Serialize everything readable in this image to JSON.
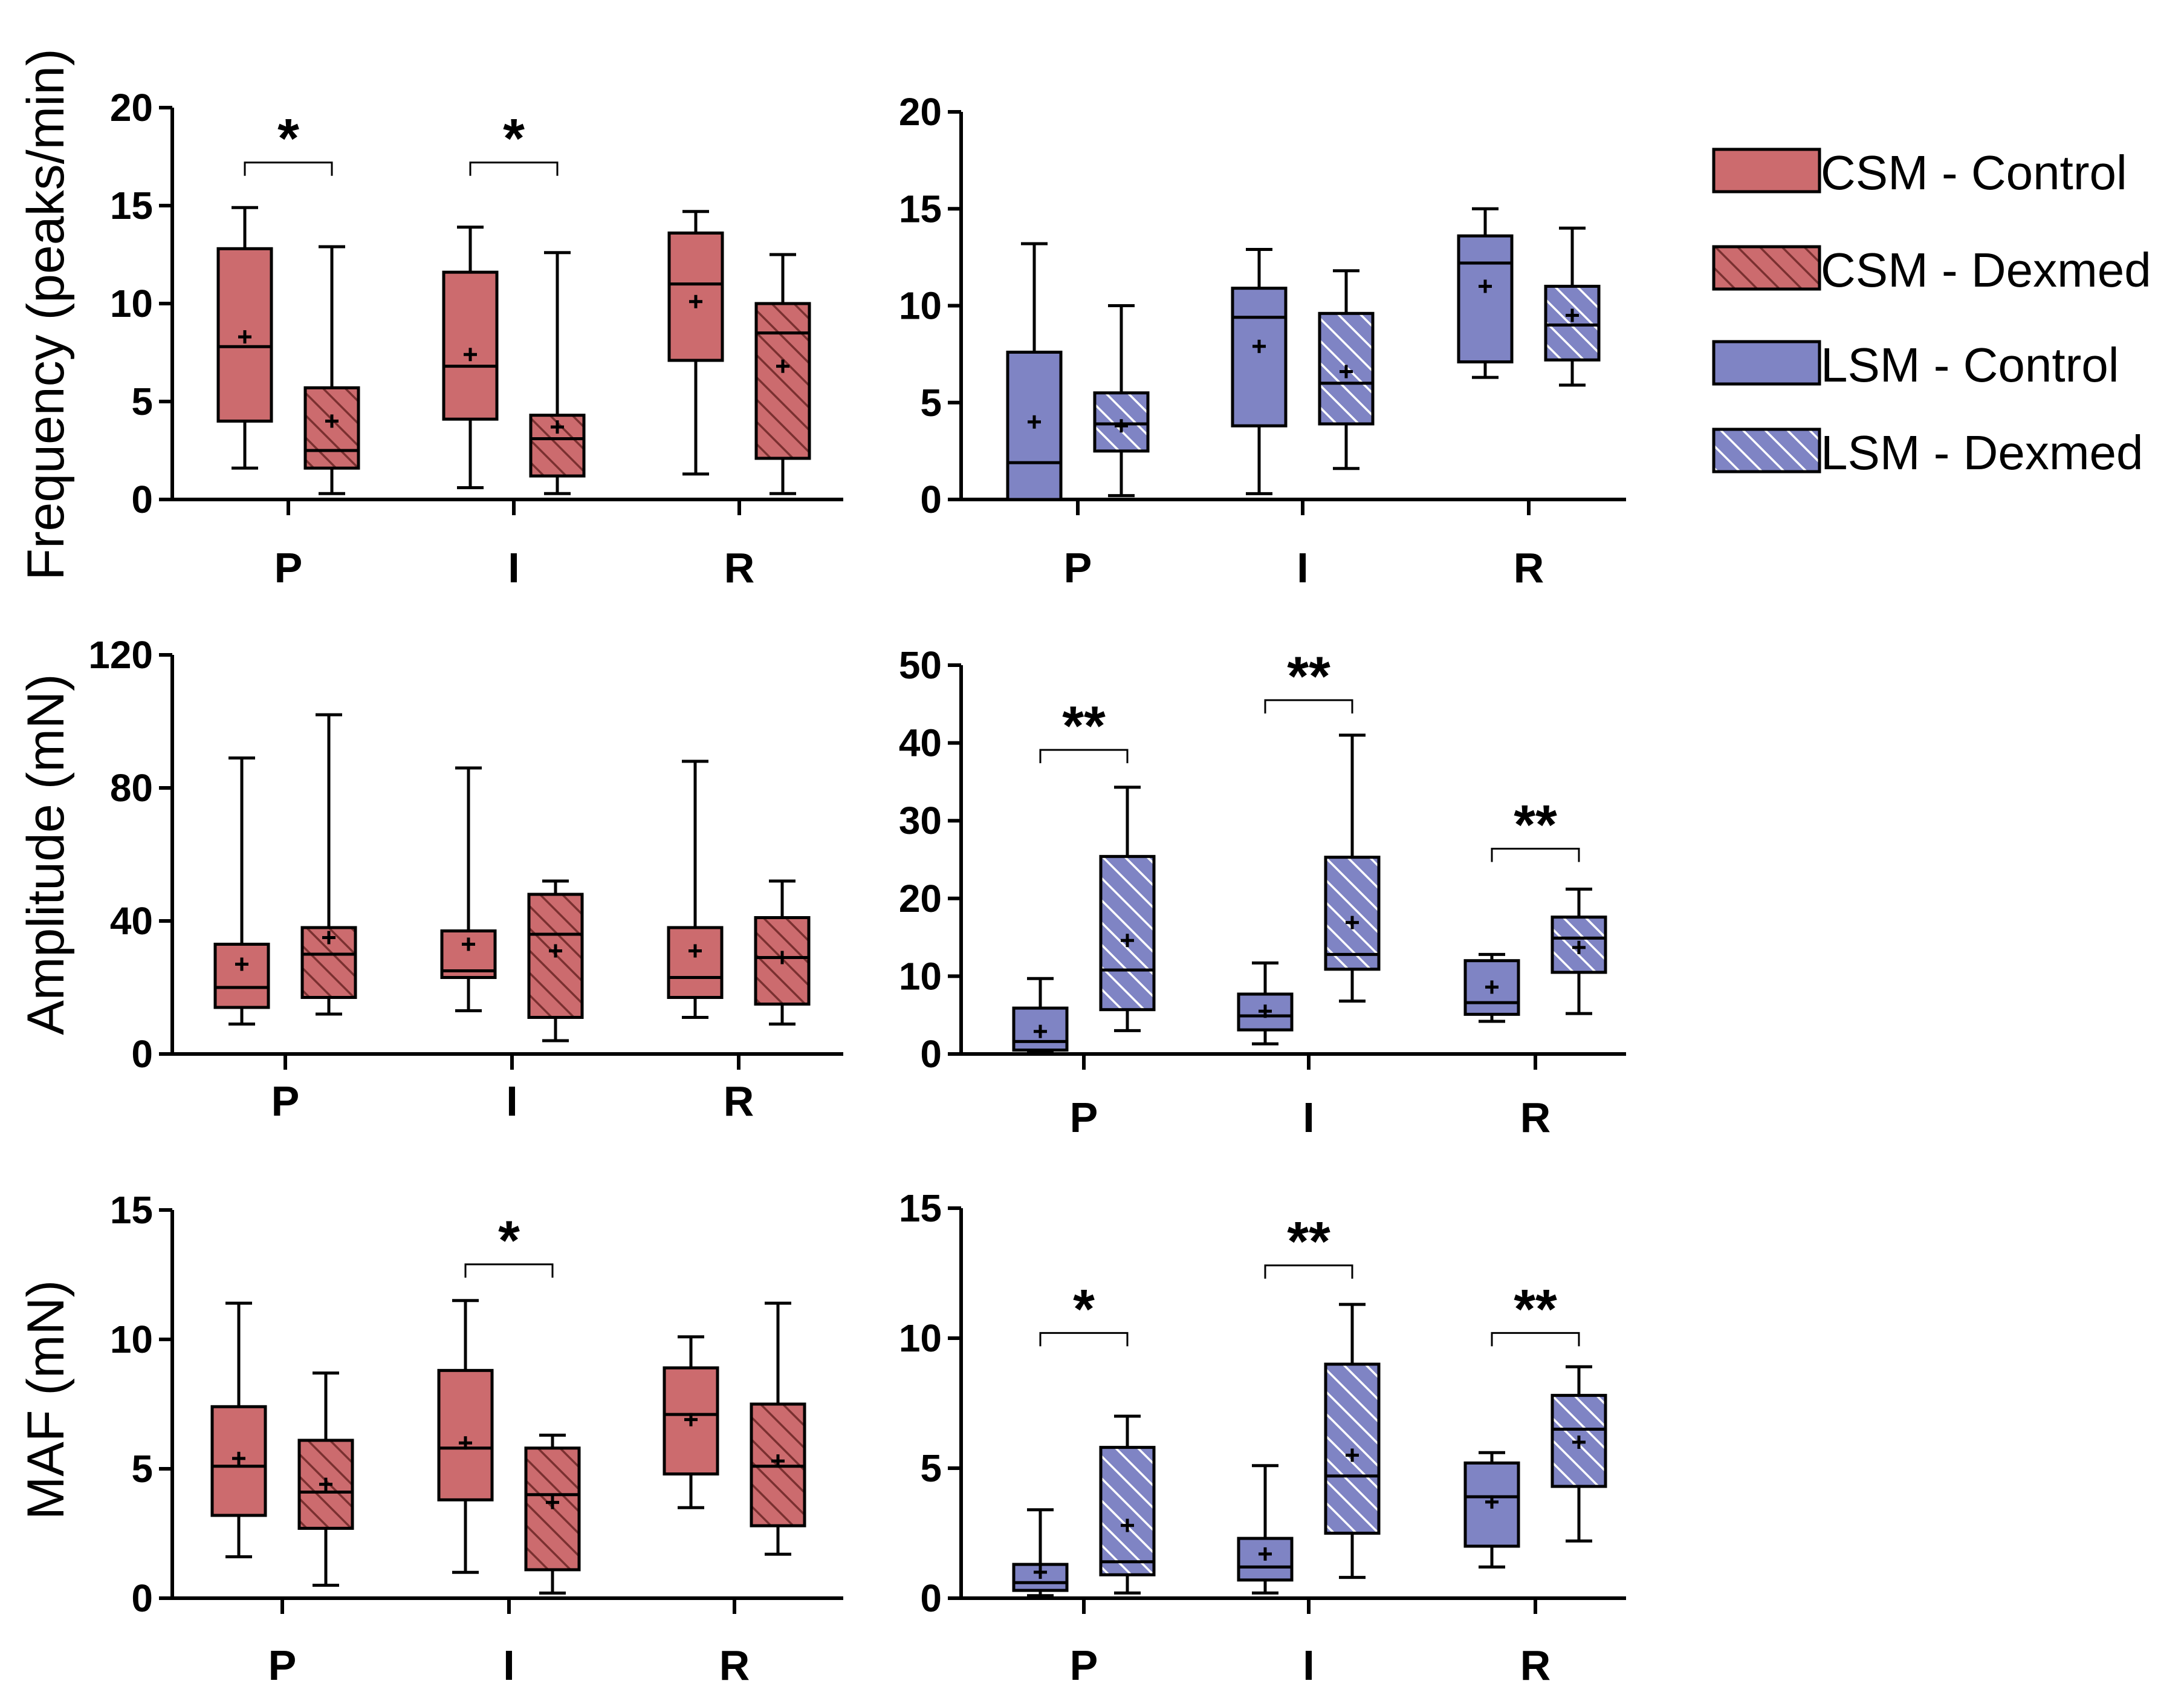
{
  "colors": {
    "csm_fill": "#cc6b6e",
    "lsm_fill": "#7f84c4",
    "csm_hatch": "#7a3030",
    "lsm_hatch": "#ffffff",
    "axis": "#000000"
  },
  "legend": [
    {
      "label": "CSM - Control",
      "group": "csm",
      "hatched": false
    },
    {
      "label": "CSM - Dexmed",
      "group": "csm",
      "hatched": true
    },
    {
      "label": "LSM - Control",
      "group": "lsm",
      "hatched": false
    },
    {
      "label": "LSM - Dexmed",
      "group": "lsm",
      "hatched": true
    }
  ],
  "chart_data": [
    {
      "id": "frequency-csm",
      "type": "box",
      "group": "csm",
      "ylabel": "Frequency (peaks/min)",
      "ylim": [
        0,
        20
      ],
      "yticks": [
        0,
        5,
        10,
        15,
        20
      ],
      "categories": [
        "P",
        "I",
        "R"
      ],
      "series": [
        {
          "name": "CSM - Control",
          "hatched": false,
          "boxes": [
            {
              "min": 1.6,
              "q1": 4.0,
              "median": 7.8,
              "q3": 12.8,
              "max": 14.9,
              "mean": 8.3
            },
            {
              "min": 0.6,
              "q1": 4.1,
              "median": 6.8,
              "q3": 11.6,
              "max": 13.9,
              "mean": 7.4
            },
            {
              "min": 1.3,
              "q1": 7.1,
              "median": 11.0,
              "q3": 13.6,
              "max": 14.7,
              "mean": 10.1
            }
          ]
        },
        {
          "name": "CSM - Dexmed",
          "hatched": true,
          "boxes": [
            {
              "min": 0.3,
              "q1": 1.6,
              "median": 2.5,
              "q3": 5.7,
              "max": 12.9,
              "mean": 4.0
            },
            {
              "min": 0.3,
              "q1": 1.2,
              "median": 3.1,
              "q3": 4.3,
              "max": 12.6,
              "mean": 3.7
            },
            {
              "min": 0.3,
              "q1": 2.1,
              "median": 8.5,
              "q3": 10.0,
              "max": 12.5,
              "mean": 6.8
            }
          ]
        }
      ],
      "significance": [
        {
          "category": "P",
          "label": "*",
          "bracket_level": 17.2
        },
        {
          "category": "I",
          "label": "*",
          "bracket_level": 17.2
        }
      ]
    },
    {
      "id": "frequency-lsm",
      "type": "box",
      "group": "lsm",
      "ylabel": "",
      "ylim": [
        0,
        20
      ],
      "yticks": [
        0,
        5,
        10,
        15,
        20
      ],
      "categories": [
        "P",
        "I",
        "R"
      ],
      "series": [
        {
          "name": "LSM - Control",
          "hatched": false,
          "boxes": [
            {
              "min": 0.0,
              "q1": 0.0,
              "median": 1.9,
              "q3": 7.6,
              "max": 13.2,
              "mean": 4.0
            },
            {
              "min": 0.3,
              "q1": 3.8,
              "median": 9.4,
              "q3": 10.9,
              "max": 12.9,
              "mean": 7.9
            },
            {
              "min": 6.3,
              "q1": 7.1,
              "median": 12.2,
              "q3": 13.6,
              "max": 15.0,
              "mean": 11.0
            }
          ]
        },
        {
          "name": "LSM - Dexmed",
          "hatched": true,
          "boxes": [
            {
              "min": 0.2,
              "q1": 2.5,
              "median": 3.9,
              "q3": 5.5,
              "max": 10.0,
              "mean": 3.8
            },
            {
              "min": 1.6,
              "q1": 3.9,
              "median": 6.0,
              "q3": 9.6,
              "max": 11.8,
              "mean": 6.6
            },
            {
              "min": 5.9,
              "q1": 7.2,
              "median": 9.0,
              "q3": 11.0,
              "max": 14.0,
              "mean": 9.5
            }
          ]
        }
      ],
      "significance": []
    },
    {
      "id": "amplitude-csm",
      "type": "box",
      "group": "csm",
      "ylabel": "Amplitude (mN)",
      "ylim": [
        0,
        120
      ],
      "yticks": [
        0,
        40,
        80,
        120
      ],
      "categories": [
        "P",
        "I",
        "R"
      ],
      "series": [
        {
          "name": "CSM - Control",
          "hatched": false,
          "boxes": [
            {
              "min": 9,
              "q1": 14,
              "median": 20,
              "q3": 33,
              "max": 89,
              "mean": 27
            },
            {
              "min": 13,
              "q1": 23,
              "median": 25,
              "q3": 37,
              "max": 86,
              "mean": 33
            },
            {
              "min": 11,
              "q1": 17,
              "median": 23,
              "q3": 38,
              "max": 88,
              "mean": 31
            }
          ]
        },
        {
          "name": "CSM - Dexmed",
          "hatched": true,
          "boxes": [
            {
              "min": 12,
              "q1": 17,
              "median": 30,
              "q3": 38,
              "max": 102,
              "mean": 35
            },
            {
              "min": 4,
              "q1": 11,
              "median": 36,
              "q3": 48,
              "max": 52,
              "mean": 31
            },
            {
              "min": 9,
              "q1": 15,
              "median": 29,
              "q3": 41,
              "max": 52,
              "mean": 29
            }
          ]
        }
      ],
      "significance": []
    },
    {
      "id": "amplitude-lsm",
      "type": "box",
      "group": "lsm",
      "ylabel": "",
      "ylim": [
        0,
        50
      ],
      "yticks": [
        0,
        10,
        20,
        30,
        40,
        50
      ],
      "categories": [
        "P",
        "I",
        "R"
      ],
      "series": [
        {
          "name": "LSM - Control",
          "hatched": false,
          "boxes": [
            {
              "min": 0.3,
              "q1": 0.5,
              "median": 1.6,
              "q3": 5.9,
              "max": 9.7,
              "mean": 2.9
            },
            {
              "min": 1.3,
              "q1": 3.1,
              "median": 4.9,
              "q3": 7.7,
              "max": 11.7,
              "mean": 5.5
            },
            {
              "min": 4.2,
              "q1": 5.1,
              "median": 6.6,
              "q3": 12.0,
              "max": 12.8,
              "mean": 8.6
            }
          ]
        },
        {
          "name": "LSM - Dexmed",
          "hatched": true,
          "boxes": [
            {
              "min": 3.0,
              "q1": 5.7,
              "median": 10.8,
              "q3": 25.4,
              "max": 34.3,
              "mean": 14.6
            },
            {
              "min": 6.8,
              "q1": 10.9,
              "median": 12.8,
              "q3": 25.3,
              "max": 41.0,
              "mean": 16.9
            },
            {
              "min": 5.2,
              "q1": 10.5,
              "median": 14.9,
              "q3": 17.6,
              "max": 21.2,
              "mean": 13.7
            }
          ]
        }
      ],
      "significance": [
        {
          "category": "P",
          "label": "**",
          "bracket_level": 39.1
        },
        {
          "category": "I",
          "label": "**",
          "bracket_level": 45.5
        },
        {
          "category": "R",
          "label": "**",
          "bracket_level": 26.4
        }
      ]
    },
    {
      "id": "maf-csm",
      "type": "box",
      "group": "csm",
      "ylabel": "MAF (mN)",
      "ylim": [
        0,
        15
      ],
      "yticks": [
        0,
        5,
        10,
        15
      ],
      "categories": [
        "P",
        "I",
        "R"
      ],
      "series": [
        {
          "name": "CSM - Control",
          "hatched": false,
          "boxes": [
            {
              "min": 1.6,
              "q1": 3.2,
              "median": 5.1,
              "q3": 7.4,
              "max": 11.4,
              "mean": 5.4
            },
            {
              "min": 1.0,
              "q1": 3.8,
              "median": 5.8,
              "q3": 8.8,
              "max": 11.5,
              "mean": 6.0
            },
            {
              "min": 3.5,
              "q1": 4.8,
              "median": 7.1,
              "q3": 8.9,
              "max": 10.1,
              "mean": 6.9
            }
          ]
        },
        {
          "name": "CSM - Dexmed",
          "hatched": true,
          "boxes": [
            {
              "min": 0.5,
              "q1": 2.7,
              "median": 4.1,
              "q3": 6.1,
              "max": 8.7,
              "mean": 4.4
            },
            {
              "min": 0.2,
              "q1": 1.1,
              "median": 4.0,
              "q3": 5.8,
              "max": 6.3,
              "mean": 3.7
            },
            {
              "min": 1.7,
              "q1": 2.8,
              "median": 5.1,
              "q3": 7.5,
              "max": 11.4,
              "mean": 5.3
            }
          ]
        }
      ],
      "significance": [
        {
          "category": "I",
          "label": "*",
          "bracket_level": 12.9
        }
      ]
    },
    {
      "id": "maf-lsm",
      "type": "box",
      "group": "lsm",
      "ylabel": "",
      "ylim": [
        0,
        15
      ],
      "yticks": [
        0,
        5,
        10,
        15
      ],
      "categories": [
        "P",
        "I",
        "R"
      ],
      "series": [
        {
          "name": "LSM - Control",
          "hatched": false,
          "boxes": [
            {
              "min": 0.1,
              "q1": 0.3,
              "median": 0.6,
              "q3": 1.3,
              "max": 3.4,
              "mean": 1.0
            },
            {
              "min": 0.2,
              "q1": 0.7,
              "median": 1.2,
              "q3": 2.3,
              "max": 5.1,
              "mean": 1.7
            },
            {
              "min": 1.2,
              "q1": 2.0,
              "median": 3.9,
              "q3": 5.2,
              "max": 5.6,
              "mean": 3.7
            }
          ]
        },
        {
          "name": "LSM - Dexmed",
          "hatched": true,
          "boxes": [
            {
              "min": 0.2,
              "q1": 0.9,
              "median": 1.4,
              "q3": 5.8,
              "max": 7.0,
              "mean": 2.8
            },
            {
              "min": 0.8,
              "q1": 2.5,
              "median": 4.7,
              "q3": 9.0,
              "max": 11.3,
              "mean": 5.5
            },
            {
              "min": 2.2,
              "q1": 4.3,
              "median": 6.5,
              "q3": 7.8,
              "max": 8.9,
              "mean": 6.0
            }
          ]
        }
      ],
      "significance": [
        {
          "category": "P",
          "label": "*",
          "bracket_level": 10.2
        },
        {
          "category": "I",
          "label": "**",
          "bracket_level": 12.8
        },
        {
          "category": "R",
          "label": "**",
          "bracket_level": 10.2
        }
      ]
    }
  ]
}
